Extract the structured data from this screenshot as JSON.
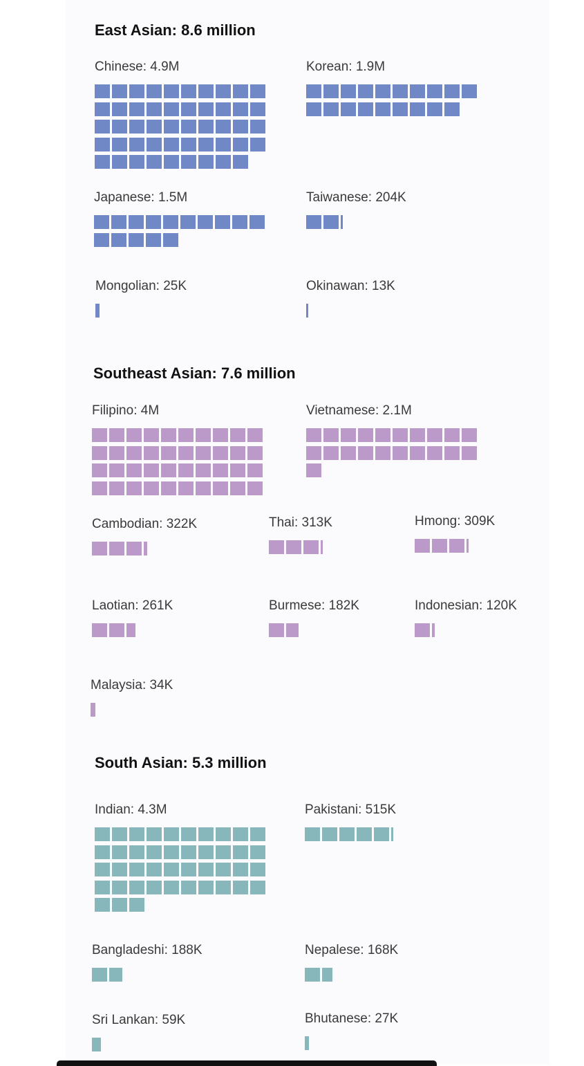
{
  "chart_data": {
    "type": "waffle",
    "unit_note": "",
    "sections": [
      {
        "key": "east",
        "title": "East Asian: 8.6 million",
        "color": "#7089c6",
        "groups": [
          {
            "label": "Chinese: 4.9M",
            "value": 4.9
          },
          {
            "label": "Korean: 1.9M",
            "value": 1.9
          },
          {
            "label": "Japanese: 1.5M",
            "value": 1.5
          },
          {
            "label": "Taiwanese: 204K",
            "value": 0.204
          },
          {
            "label": "Mongolian: 25K",
            "value": 0.025
          },
          {
            "label": "Okinawan: 13K",
            "value": 0.013
          }
        ]
      },
      {
        "key": "southeast",
        "title": "Southeast Asian: 7.6 million",
        "color": "#bb9ac9",
        "groups": [
          {
            "label": "Filipino: 4M",
            "value": 4.0
          },
          {
            "label": "Vietnamese: 2.1M",
            "value": 2.1
          },
          {
            "label": "Cambodian: 322K",
            "value": 0.322
          },
          {
            "label": "Thai: 313K",
            "value": 0.313
          },
          {
            "label": "Hmong: 309K",
            "value": 0.309
          },
          {
            "label": "Laotian: 261K",
            "value": 0.261
          },
          {
            "label": "Burmese: 182K",
            "value": 0.182
          },
          {
            "label": "Indonesian: 120K",
            "value": 0.12
          },
          {
            "label": "Malaysia: 34K",
            "value": 0.034
          }
        ]
      },
      {
        "key": "south",
        "title": "South Asian: 5.3 million",
        "color": "#88b7bb",
        "groups": [
          {
            "label": "Indian: 4.3M",
            "value": 4.3
          },
          {
            "label": "Pakistani: 515K",
            "value": 0.515
          },
          {
            "label": "Bangladeshi: 188K",
            "value": 0.188
          },
          {
            "label": "Nepalese: 168K",
            "value": 0.168
          },
          {
            "label": "Sri Lankan: 59K",
            "value": 0.059
          },
          {
            "label": "Bhutanese: 27K",
            "value": 0.027
          }
        ]
      }
    ]
  }
}
